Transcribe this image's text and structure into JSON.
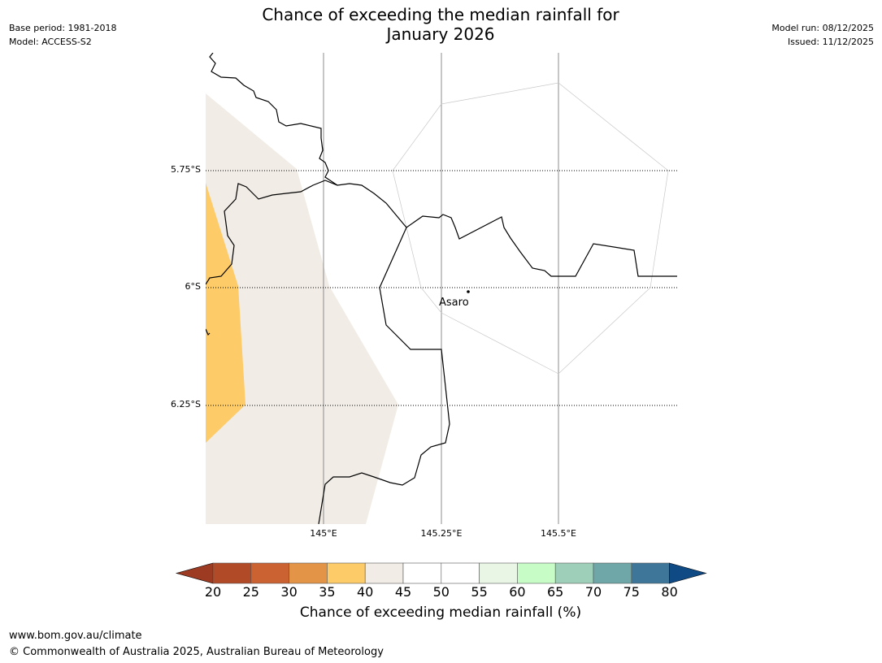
{
  "header": {
    "title_line1": "Chance of exceeding the median rainfall for",
    "title_line2": "January 2026",
    "base_period": "Base period: 1981-2018",
    "model": "Model: ACCESS-S2",
    "model_run": "Model run: 08/12/2025",
    "issued": "Issued: 11/12/2025"
  },
  "map": {
    "latitude_labels": [
      "5.75°S",
      "6°S",
      "6.25°S"
    ],
    "longitude_labels": [
      "145°E",
      "145.25°E",
      "145.5°E"
    ],
    "place_label": "Asaro",
    "shading_colors": {
      "35-40": "#fdcb68",
      "40-45": "#f1ece5"
    }
  },
  "colorbar": {
    "title": "Chance of exceeding median rainfall (%)",
    "ticks": [
      "20",
      "25",
      "30",
      "35",
      "40",
      "45",
      "50",
      "55",
      "60",
      "65",
      "70",
      "75",
      "80"
    ],
    "colors": [
      "#9c3a22",
      "#b14a26",
      "#cb6231",
      "#e49447",
      "#fdcb68",
      "#f1ece5",
      "#ffffff",
      "#ffffff",
      "#e9f6e5",
      "#c8fcc7",
      "#9ed0b9",
      "#6fa6a8",
      "#3e7699",
      "#0f4a85"
    ]
  },
  "footer": {
    "website": "www.bom.gov.au/climate",
    "copyright": "© Commonwealth of Australia 2025, Australian Bureau of Meteorology"
  }
}
